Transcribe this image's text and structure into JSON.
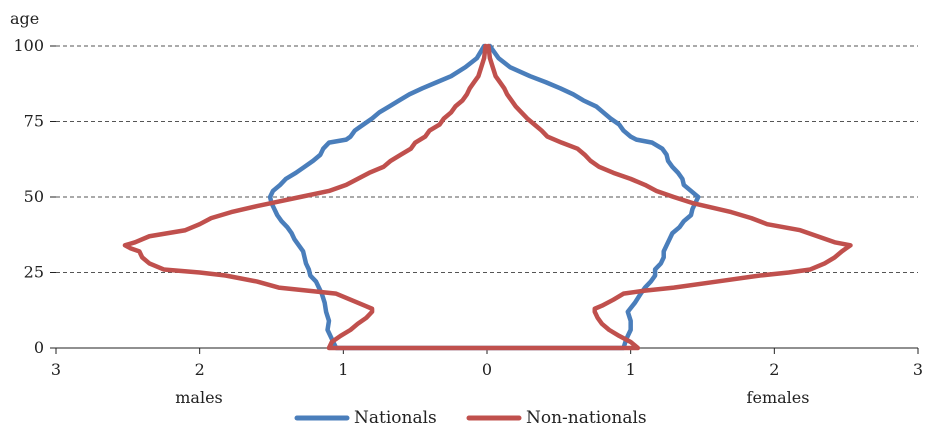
{
  "chart_data": {
    "type": "line",
    "ylabel": "age",
    "x_side_labels": {
      "left": "males",
      "right": "females"
    },
    "xlim": [
      -3,
      3
    ],
    "ylim": [
      0,
      100
    ],
    "x_ticks": [
      {
        "value": -3,
        "label": "3"
      },
      {
        "value": -2,
        "label": "2"
      },
      {
        "value": -1,
        "label": "1"
      },
      {
        "value": 0,
        "label": "0"
      },
      {
        "value": 1,
        "label": "1"
      },
      {
        "value": 2,
        "label": "2"
      },
      {
        "value": 3,
        "label": "3"
      }
    ],
    "y_ticks": [
      0,
      25,
      50,
      75,
      100
    ],
    "gridlines": {
      "y": true,
      "style": "dashed"
    },
    "legend": {
      "position": "bottom"
    },
    "series": [
      {
        "name": "Nationals",
        "color": "#4a7ebb",
        "males": [
          [
            0,
            1.05
          ],
          [
            3,
            1.08
          ],
          [
            6,
            1.11
          ],
          [
            9,
            1.1
          ],
          [
            12,
            1.12
          ],
          [
            15,
            1.13
          ],
          [
            18,
            1.15
          ],
          [
            20,
            1.17
          ],
          [
            22,
            1.19
          ],
          [
            24,
            1.23
          ],
          [
            26,
            1.24
          ],
          [
            28,
            1.26
          ],
          [
            30,
            1.27
          ],
          [
            32,
            1.28
          ],
          [
            34,
            1.31
          ],
          [
            36,
            1.34
          ],
          [
            38,
            1.36
          ],
          [
            40,
            1.39
          ],
          [
            42,
            1.43
          ],
          [
            44,
            1.46
          ],
          [
            46,
            1.48
          ],
          [
            48,
            1.5
          ],
          [
            50,
            1.51
          ],
          [
            52,
            1.49
          ],
          [
            54,
            1.44
          ],
          [
            56,
            1.4
          ],
          [
            58,
            1.33
          ],
          [
            60,
            1.27
          ],
          [
            62,
            1.21
          ],
          [
            64,
            1.16
          ],
          [
            66,
            1.14
          ],
          [
            68,
            1.1
          ],
          [
            69,
            0.98
          ],
          [
            70,
            0.95
          ],
          [
            72,
            0.92
          ],
          [
            74,
            0.86
          ],
          [
            76,
            0.8
          ],
          [
            78,
            0.75
          ],
          [
            80,
            0.68
          ],
          [
            82,
            0.61
          ],
          [
            84,
            0.54
          ],
          [
            86,
            0.45
          ],
          [
            88,
            0.35
          ],
          [
            90,
            0.25
          ],
          [
            93,
            0.15
          ],
          [
            96,
            0.07
          ],
          [
            100,
            0.02
          ]
        ],
        "females": [
          [
            0,
            0.95
          ],
          [
            3,
            0.97
          ],
          [
            6,
            1.0
          ],
          [
            9,
            1.0
          ],
          [
            12,
            0.98
          ],
          [
            15,
            1.03
          ],
          [
            18,
            1.07
          ],
          [
            20,
            1.1
          ],
          [
            22,
            1.14
          ],
          [
            24,
            1.17
          ],
          [
            26,
            1.17
          ],
          [
            28,
            1.21
          ],
          [
            30,
            1.23
          ],
          [
            32,
            1.23
          ],
          [
            34,
            1.25
          ],
          [
            36,
            1.27
          ],
          [
            38,
            1.29
          ],
          [
            40,
            1.34
          ],
          [
            42,
            1.37
          ],
          [
            44,
            1.42
          ],
          [
            46,
            1.43
          ],
          [
            48,
            1.45
          ],
          [
            50,
            1.47
          ],
          [
            52,
            1.42
          ],
          [
            54,
            1.37
          ],
          [
            56,
            1.36
          ],
          [
            58,
            1.33
          ],
          [
            60,
            1.29
          ],
          [
            62,
            1.26
          ],
          [
            64,
            1.25
          ],
          [
            66,
            1.22
          ],
          [
            68,
            1.15
          ],
          [
            69,
            1.04
          ],
          [
            70,
            1.0
          ],
          [
            72,
            0.95
          ],
          [
            74,
            0.92
          ],
          [
            76,
            0.86
          ],
          [
            78,
            0.81
          ],
          [
            80,
            0.76
          ],
          [
            82,
            0.67
          ],
          [
            84,
            0.6
          ],
          [
            86,
            0.51
          ],
          [
            88,
            0.41
          ],
          [
            90,
            0.3
          ],
          [
            93,
            0.16
          ],
          [
            96,
            0.08
          ],
          [
            100,
            0.02
          ]
        ]
      },
      {
        "name": "Non-nationals",
        "color": "#c0504d",
        "males": [
          [
            0,
            1.1
          ],
          [
            2,
            1.08
          ],
          [
            4,
            1.02
          ],
          [
            6,
            0.95
          ],
          [
            8,
            0.9
          ],
          [
            10,
            0.84
          ],
          [
            12,
            0.8
          ],
          [
            13,
            0.8
          ],
          [
            14,
            0.85
          ],
          [
            16,
            0.95
          ],
          [
            18,
            1.05
          ],
          [
            19,
            1.25
          ],
          [
            20,
            1.45
          ],
          [
            22,
            1.6
          ],
          [
            24,
            1.82
          ],
          [
            25,
            2.0
          ],
          [
            26,
            2.25
          ],
          [
            28,
            2.35
          ],
          [
            30,
            2.4
          ],
          [
            32,
            2.42
          ],
          [
            33,
            2.48
          ],
          [
            34,
            2.52
          ],
          [
            35,
            2.45
          ],
          [
            37,
            2.35
          ],
          [
            39,
            2.1
          ],
          [
            41,
            2.0
          ],
          [
            43,
            1.92
          ],
          [
            45,
            1.78
          ],
          [
            47,
            1.6
          ],
          [
            48,
            1.5
          ],
          [
            50,
            1.3
          ],
          [
            52,
            1.1
          ],
          [
            54,
            0.98
          ],
          [
            56,
            0.9
          ],
          [
            58,
            0.82
          ],
          [
            60,
            0.72
          ],
          [
            62,
            0.67
          ],
          [
            64,
            0.6
          ],
          [
            66,
            0.53
          ],
          [
            68,
            0.5
          ],
          [
            70,
            0.43
          ],
          [
            72,
            0.4
          ],
          [
            74,
            0.33
          ],
          [
            76,
            0.3
          ],
          [
            78,
            0.25
          ],
          [
            80,
            0.22
          ],
          [
            82,
            0.17
          ],
          [
            84,
            0.14
          ],
          [
            86,
            0.12
          ],
          [
            88,
            0.09
          ],
          [
            90,
            0.06
          ],
          [
            93,
            0.04
          ],
          [
            96,
            0.02
          ],
          [
            100,
            0.01
          ]
        ],
        "females": [
          [
            0,
            1.05
          ],
          [
            2,
            1.0
          ],
          [
            4,
            0.92
          ],
          [
            6,
            0.85
          ],
          [
            8,
            0.8
          ],
          [
            10,
            0.77
          ],
          [
            12,
            0.75
          ],
          [
            13,
            0.75
          ],
          [
            14,
            0.8
          ],
          [
            16,
            0.88
          ],
          [
            18,
            0.95
          ],
          [
            19,
            1.1
          ],
          [
            20,
            1.3
          ],
          [
            22,
            1.6
          ],
          [
            24,
            1.9
          ],
          [
            25,
            2.1
          ],
          [
            26,
            2.25
          ],
          [
            28,
            2.35
          ],
          [
            30,
            2.42
          ],
          [
            32,
            2.47
          ],
          [
            33,
            2.5
          ],
          [
            34,
            2.53
          ],
          [
            35,
            2.42
          ],
          [
            37,
            2.3
          ],
          [
            39,
            2.18
          ],
          [
            41,
            1.95
          ],
          [
            43,
            1.84
          ],
          [
            45,
            1.7
          ],
          [
            47,
            1.52
          ],
          [
            48,
            1.43
          ],
          [
            50,
            1.3
          ],
          [
            52,
            1.18
          ],
          [
            54,
            1.1
          ],
          [
            56,
            1.0
          ],
          [
            58,
            0.88
          ],
          [
            60,
            0.78
          ],
          [
            62,
            0.72
          ],
          [
            64,
            0.68
          ],
          [
            66,
            0.63
          ],
          [
            68,
            0.52
          ],
          [
            70,
            0.42
          ],
          [
            72,
            0.38
          ],
          [
            74,
            0.33
          ],
          [
            76,
            0.28
          ],
          [
            78,
            0.24
          ],
          [
            80,
            0.2
          ],
          [
            82,
            0.17
          ],
          [
            84,
            0.14
          ],
          [
            86,
            0.12
          ],
          [
            88,
            0.09
          ],
          [
            90,
            0.06
          ],
          [
            93,
            0.04
          ],
          [
            96,
            0.02
          ],
          [
            100,
            0.01
          ]
        ]
      }
    ]
  }
}
